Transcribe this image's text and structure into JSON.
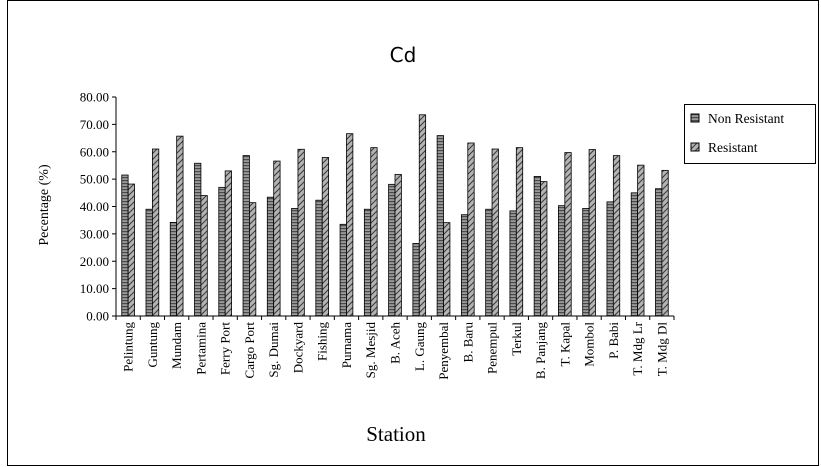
{
  "chart_data": {
    "type": "bar",
    "title": "Cd",
    "xlabel": "Station",
    "ylabel": "Pecentage (%)",
    "ylim": [
      0,
      80
    ],
    "y_ticks": [
      "0.00",
      "10.00",
      "20.00",
      "30.00",
      "40.00",
      "50.00",
      "60.00",
      "70.00",
      "80.00"
    ],
    "grid": false,
    "legend_position": "right",
    "categories": [
      "Pelintung",
      "Guntung",
      "Mundam",
      "Pertamina",
      "Ferry Port",
      "Cargo Port",
      "Sg. Dumai",
      "Dockyard",
      "Fishing",
      "Purnama",
      "Sg. Mesjid",
      "B. Aceh",
      "L. Gaung",
      "Penyembal",
      "B. Baru",
      "Penempul",
      "Terkul",
      "B. Panjang",
      "T. Kapal",
      "Mombol",
      "P. Babi",
      "T. Mdg Lr",
      "T. Mdg Dl"
    ],
    "series": [
      {
        "name": "Non Resistant",
        "color": "#8c8c8c",
        "values": [
          51.5,
          39.0,
          34.2,
          55.8,
          47.0,
          58.6,
          43.4,
          39.3,
          42.3,
          33.5,
          39.0,
          48.1,
          26.5,
          65.9,
          37.0,
          39.0,
          38.4,
          51.0,
          40.3,
          39.3,
          41.7,
          45.0,
          46.5
        ]
      },
      {
        "name": "Resistant",
        "color": "#a6a6a6",
        "values": [
          48.2,
          61.0,
          65.7,
          44.0,
          53.0,
          41.4,
          56.6,
          60.9,
          57.9,
          66.6,
          61.5,
          51.7,
          73.5,
          34.1,
          63.2,
          61.0,
          61.5,
          49.1,
          59.7,
          60.8,
          58.6,
          55.1,
          53.2
        ]
      }
    ]
  }
}
